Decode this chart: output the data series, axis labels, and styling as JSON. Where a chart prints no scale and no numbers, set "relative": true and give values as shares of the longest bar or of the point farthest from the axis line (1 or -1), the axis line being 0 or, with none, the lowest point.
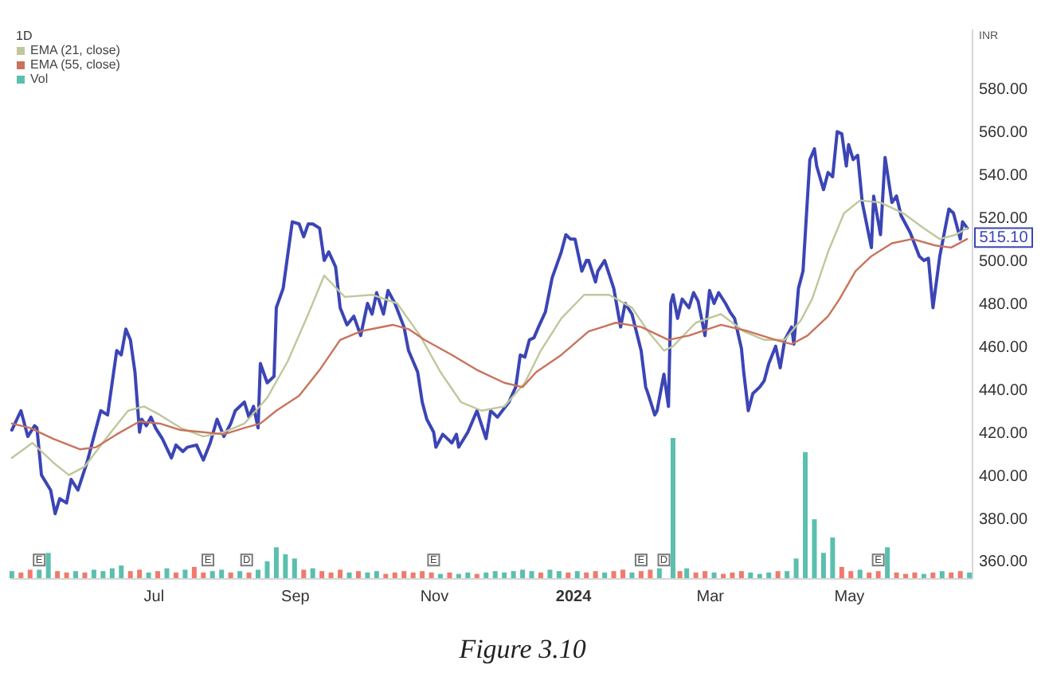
{
  "chart_data": [
    {
      "type": "line",
      "title": "1D",
      "ylabel": "INR",
      "legend": "top left",
      "xlim": [
        "2023-04-29",
        "2024-06-24"
      ],
      "xticks": [
        {
          "value": "2023-07-01",
          "label": "Jul"
        },
        {
          "value": "2023-09-01",
          "label": "Sep"
        },
        {
          "value": "2023-11-01",
          "label": "Nov"
        },
        {
          "value": "2024-01-01",
          "label": "2024"
        },
        {
          "value": "2024-03-01",
          "label": "Mar"
        },
        {
          "value": "2024-05-01",
          "label": "May"
        }
      ],
      "ylim": [
        352,
        608
      ],
      "yticks": [
        {
          "value": 360,
          "label": "360.00"
        },
        {
          "value": 380,
          "label": "380.00"
        },
        {
          "value": 400,
          "label": "400.00"
        },
        {
          "value": 420,
          "label": "420.00"
        },
        {
          "value": 440,
          "label": "440.00"
        },
        {
          "value": 460,
          "label": "460.00"
        },
        {
          "value": 480,
          "label": "480.00"
        },
        {
          "value": 500,
          "label": "500.00"
        },
        {
          "value": 520,
          "label": "520.00"
        },
        {
          "value": 540,
          "label": "540.00"
        },
        {
          "value": 560,
          "label": "560.00"
        },
        {
          "value": 580,
          "label": "580.00"
        }
      ],
      "series": [
        {
          "color": "#3b45b5",
          "x": [
            "2023-04-30",
            "2023-05-04",
            "2023-05-07",
            "2023-05-10",
            "2023-05-11",
            "2023-05-13",
            "2023-05-17",
            "2023-05-19",
            "2023-05-21",
            "2023-05-24",
            "2023-05-26",
            "2023-05-29",
            "2023-06-02",
            "2023-06-05",
            "2023-06-08",
            "2023-06-11",
            "2023-06-15",
            "2023-06-17",
            "2023-06-19",
            "2023-06-21",
            "2023-06-23",
            "2023-06-25",
            "2023-06-26",
            "2023-06-28",
            "2023-06-30",
            "2023-07-02",
            "2023-07-05",
            "2023-07-09",
            "2023-07-11",
            "2023-07-14",
            "2023-07-16",
            "2023-07-20",
            "2023-07-23",
            "2023-07-26",
            "2023-07-29",
            "2023-08-01",
            "2023-08-04",
            "2023-08-06",
            "2023-08-10",
            "2023-08-12",
            "2023-08-14",
            "2023-08-16",
            "2023-08-17",
            "2023-08-20",
            "2023-08-23",
            "2023-08-24",
            "2023-08-27",
            "2023-08-31",
            "2023-09-03",
            "2023-09-05",
            "2023-09-07",
            "2023-09-09",
            "2023-09-12",
            "2023-09-14",
            "2023-09-16",
            "2023-09-19",
            "2023-09-21",
            "2023-09-24",
            "2023-09-27",
            "2023-09-30",
            "2023-10-03",
            "2023-10-05",
            "2023-10-07",
            "2023-10-10",
            "2023-10-12",
            "2023-10-15",
            "2023-10-19",
            "2023-10-21",
            "2023-10-25",
            "2023-10-27",
            "2023-10-29",
            "2023-11-01",
            "2023-11-02",
            "2023-11-05",
            "2023-11-09",
            "2023-11-11",
            "2023-11-12",
            "2023-11-16",
            "2023-11-20",
            "2023-11-24",
            "2023-11-26",
            "2023-11-29",
            "2023-12-04",
            "2023-12-07",
            "2023-12-09",
            "2023-12-11",
            "2023-12-13",
            "2023-12-15",
            "2023-12-17",
            "2023-12-20",
            "2023-12-23",
            "2023-12-27",
            "2023-12-29",
            "2023-12-31",
            "2024-01-02",
            "2024-01-05",
            "2024-01-07",
            "2024-01-08",
            "2024-01-11",
            "2024-01-12",
            "2024-01-15",
            "2024-01-19",
            "2024-01-22",
            "2024-01-24",
            "2024-01-27",
            "2024-01-31",
            "2024-02-02",
            "2024-02-03",
            "2024-02-06",
            "2024-02-07",
            "2024-02-10",
            "2024-02-12",
            "2024-02-13",
            "2024-02-14",
            "2024-02-16",
            "2024-02-18",
            "2024-02-21",
            "2024-02-23",
            "2024-02-25",
            "2024-02-28",
            "2024-03-01",
            "2024-03-03",
            "2024-03-05",
            "2024-03-08",
            "2024-03-10",
            "2024-03-12",
            "2024-03-15",
            "2024-03-16",
            "2024-03-18",
            "2024-03-20",
            "2024-03-23",
            "2024-03-25",
            "2024-03-27",
            "2024-03-30",
            "2024-04-01",
            "2024-04-03",
            "2024-04-06",
            "2024-04-07",
            "2024-04-09",
            "2024-04-11",
            "2024-04-14",
            "2024-04-16",
            "2024-04-17",
            "2024-04-20",
            "2024-04-22",
            "2024-04-24",
            "2024-04-26",
            "2024-04-28",
            "2024-04-30",
            "2024-05-01",
            "2024-05-03",
            "2024-05-05",
            "2024-05-07",
            "2024-05-11",
            "2024-05-12",
            "2024-05-15",
            "2024-05-17",
            "2024-05-20",
            "2024-05-22",
            "2024-05-24",
            "2024-05-28",
            "2024-06-01",
            "2024-06-03",
            "2024-06-05",
            "2024-06-07",
            "2024-06-10",
            "2024-06-14",
            "2024-06-16",
            "2024-06-19",
            "2024-06-20",
            "2024-06-22"
          ],
          "values": [
            421,
            430,
            418,
            423,
            422,
            400,
            393,
            382,
            389,
            387,
            398,
            393,
            406,
            418,
            430,
            428,
            458,
            456,
            468,
            463,
            448,
            420,
            426,
            423,
            427,
            422,
            417,
            408,
            414,
            411,
            413,
            414,
            407,
            415,
            426,
            418,
            424,
            430,
            434,
            427,
            432,
            422,
            452,
            443,
            446,
            478,
            487,
            518,
            517,
            511,
            517,
            517,
            515,
            500,
            504,
            497,
            478,
            470,
            474,
            465,
            480,
            475,
            485,
            475,
            486,
            480,
            469,
            458,
            448,
            434,
            426,
            420,
            413,
            419,
            415,
            419,
            413,
            420,
            430,
            417,
            430,
            427,
            434,
            441,
            456,
            455,
            463,
            464,
            469,
            476,
            492,
            504,
            512,
            510,
            510,
            495,
            500,
            500,
            490,
            495,
            500,
            487,
            469,
            480,
            475,
            458,
            441,
            438,
            428,
            430,
            447,
            432,
            480,
            484,
            473,
            482,
            478,
            485,
            481,
            465,
            486,
            480,
            485,
            480,
            476,
            473,
            459,
            448,
            430,
            438,
            441,
            444,
            452,
            460,
            450,
            463,
            469,
            461,
            487,
            495,
            547,
            552,
            544,
            533,
            541,
            539,
            560,
            559,
            544,
            554,
            547,
            549,
            527,
            506,
            530,
            512,
            548,
            527,
            530,
            521,
            513,
            502,
            500,
            501,
            478,
            502,
            524,
            522,
            510,
            518,
            515.1
          ]
        },
        {
          "name": "EMA (21, close)",
          "color": "#bfc79c",
          "x": [
            "2023-04-30",
            "2023-05-09",
            "2023-05-18",
            "2023-05-25",
            "2023-06-01",
            "2023-06-11",
            "2023-06-20",
            "2023-06-27",
            "2023-07-04",
            "2023-07-13",
            "2023-07-23",
            "2023-08-01",
            "2023-08-10",
            "2023-08-20",
            "2023-08-29",
            "2023-09-07",
            "2023-09-14",
            "2023-09-23",
            "2023-10-05",
            "2023-10-16",
            "2023-10-26",
            "2023-11-04",
            "2023-11-13",
            "2023-11-22",
            "2023-12-02",
            "2023-12-11",
            "2023-12-18",
            "2023-12-27",
            "2024-01-06",
            "2024-01-17",
            "2024-01-27",
            "2024-02-03",
            "2024-02-10",
            "2024-02-14",
            "2024-02-24",
            "2024-03-06",
            "2024-03-16",
            "2024-03-25",
            "2024-04-03",
            "2024-04-10",
            "2024-04-15",
            "2024-04-22",
            "2024-04-29",
            "2024-05-06",
            "2024-05-15",
            "2024-05-25",
            "2024-06-03",
            "2024-06-10",
            "2024-06-17",
            "2024-06-22"
          ],
          "values": [
            408,
            415,
            406,
            400,
            404,
            418,
            430,
            432,
            428,
            422,
            418,
            420,
            424,
            436,
            453,
            475,
            493,
            483,
            484,
            480,
            465,
            448,
            434,
            430,
            432,
            443,
            458,
            473,
            484,
            484,
            478,
            467,
            458,
            460,
            471,
            475,
            467,
            463,
            463,
            472,
            482,
            504,
            522,
            528,
            527,
            522,
            515,
            510,
            512,
            515
          ]
        },
        {
          "name": "EMA (55, close)",
          "color": "#c9735c",
          "x": [
            "2023-04-30",
            "2023-05-08",
            "2023-05-18",
            "2023-05-30",
            "2023-06-06",
            "2023-06-15",
            "2023-06-25",
            "2023-07-04",
            "2023-07-13",
            "2023-07-23",
            "2023-08-01",
            "2023-08-10",
            "2023-08-17",
            "2023-08-24",
            "2023-09-03",
            "2023-09-12",
            "2023-09-21",
            "2023-09-30",
            "2023-10-14",
            "2023-10-21",
            "2023-10-28",
            "2023-11-09",
            "2023-11-20",
            "2023-12-02",
            "2023-12-10",
            "2023-12-16",
            "2023-12-27",
            "2024-01-08",
            "2024-01-20",
            "2024-01-31",
            "2024-02-12",
            "2024-02-21",
            "2024-03-06",
            "2024-03-18",
            "2024-03-30",
            "2024-04-06",
            "2024-04-13",
            "2024-04-22",
            "2024-04-27",
            "2024-05-04",
            "2024-05-11",
            "2024-05-20",
            "2024-05-29",
            "2024-06-08",
            "2024-06-15",
            "2024-06-22"
          ],
          "values": [
            424,
            422,
            417,
            412,
            413,
            419,
            425,
            424,
            421,
            420,
            419,
            422,
            424,
            430,
            437,
            449,
            463,
            467,
            470,
            468,
            463,
            456,
            449,
            443,
            441,
            448,
            456,
            467,
            471,
            469,
            463,
            465,
            470,
            467,
            463,
            461,
            465,
            474,
            482,
            495,
            502,
            508,
            510,
            507,
            506,
            510
          ]
        }
      ],
      "annotations": [
        {
          "text": "515.10",
          "x": "2024-06-22",
          "y": 515.1
        },
        "Figure 3.10"
      ]
    },
    {
      "type": "bar",
      "relative": true,
      "legend": "top left",
      "tick_labels": false,
      "xlim": [
        "2023-04-29",
        "2024-06-24"
      ],
      "series": [
        {
          "name": "Vol",
          "x": [
            "2023-04-30",
            "2023-05-04",
            "2023-05-08",
            "2023-05-12",
            "2023-05-16",
            "2023-05-20",
            "2023-05-24",
            "2023-05-28",
            "2023-06-01",
            "2023-06-05",
            "2023-06-09",
            "2023-06-13",
            "2023-06-17",
            "2023-06-21",
            "2023-06-25",
            "2023-06-29",
            "2023-07-03",
            "2023-07-07",
            "2023-07-11",
            "2023-07-15",
            "2023-07-19",
            "2023-07-23",
            "2023-07-27",
            "2023-07-31",
            "2023-08-04",
            "2023-08-08",
            "2023-08-12",
            "2023-08-16",
            "2023-08-20",
            "2023-08-24",
            "2023-08-28",
            "2023-09-01",
            "2023-09-05",
            "2023-09-09",
            "2023-09-13",
            "2023-09-17",
            "2023-09-21",
            "2023-09-25",
            "2023-09-29",
            "2023-10-03",
            "2023-10-07",
            "2023-10-11",
            "2023-10-15",
            "2023-10-19",
            "2023-10-23",
            "2023-10-27",
            "2023-10-31",
            "2023-11-04",
            "2023-11-08",
            "2023-11-12",
            "2023-11-16",
            "2023-11-20",
            "2023-11-24",
            "2023-11-28",
            "2023-12-02",
            "2023-12-06",
            "2023-12-10",
            "2023-12-14",
            "2023-12-18",
            "2023-12-22",
            "2023-12-26",
            "2023-12-30",
            "2024-01-03",
            "2024-01-07",
            "2024-01-11",
            "2024-01-15",
            "2024-01-19",
            "2024-01-23",
            "2024-01-27",
            "2024-01-31",
            "2024-02-04",
            "2024-02-08",
            "2024-02-14",
            "2024-02-17",
            "2024-02-20",
            "2024-02-24",
            "2024-02-28",
            "2024-03-03",
            "2024-03-07",
            "2024-03-11",
            "2024-03-15",
            "2024-03-19",
            "2024-03-23",
            "2024-03-27",
            "2024-03-31",
            "2024-04-04",
            "2024-04-08",
            "2024-04-12",
            "2024-04-16",
            "2024-04-20",
            "2024-04-24",
            "2024-04-28",
            "2024-05-02",
            "2024-05-06",
            "2024-05-10",
            "2024-05-14",
            "2024-05-18",
            "2024-05-22",
            "2024-05-26",
            "2024-05-30",
            "2024-06-03",
            "2024-06-07",
            "2024-06-11",
            "2024-06-15",
            "2024-06-19",
            "2024-06-23"
          ],
          "values": [
            0.05,
            0.04,
            0.06,
            0.06,
            0.18,
            0.05,
            0.04,
            0.05,
            0.04,
            0.06,
            0.05,
            0.07,
            0.09,
            0.05,
            0.06,
            0.04,
            0.05,
            0.07,
            0.04,
            0.06,
            0.08,
            0.04,
            0.05,
            0.06,
            0.04,
            0.05,
            0.04,
            0.06,
            0.12,
            0.22,
            0.17,
            0.14,
            0.06,
            0.07,
            0.05,
            0.04,
            0.06,
            0.04,
            0.05,
            0.04,
            0.05,
            0.03,
            0.04,
            0.05,
            0.04,
            0.05,
            0.04,
            0.03,
            0.04,
            0.03,
            0.04,
            0.03,
            0.04,
            0.05,
            0.04,
            0.05,
            0.06,
            0.05,
            0.04,
            0.06,
            0.05,
            0.04,
            0.05,
            0.04,
            0.05,
            0.04,
            0.05,
            0.06,
            0.04,
            0.05,
            0.06,
            0.07,
            1,
            0.05,
            0.07,
            0.04,
            0.05,
            0.04,
            0.03,
            0.04,
            0.05,
            0.04,
            0.03,
            0.04,
            0.05,
            0.05,
            0.14,
            0.9,
            0.42,
            0.18,
            0.29,
            0.08,
            0.05,
            0.06,
            0.04,
            0.05,
            0.22,
            0.04,
            0.03,
            0.04,
            0.03,
            0.04,
            0.05,
            0.04,
            0.05,
            0.04
          ],
          "colors": [
            "#5cbfae",
            "#ee7b6d",
            "#ee7b6d",
            "#5cbfae",
            "#5cbfae",
            "#ee7b6d",
            "#ee7b6d",
            "#5cbfae",
            "#ee7b6d",
            "#5cbfae",
            "#5cbfae",
            "#5cbfae",
            "#5cbfae",
            "#ee7b6d",
            "#ee7b6d",
            "#5cbfae",
            "#ee7b6d",
            "#5cbfae",
            "#ee7b6d",
            "#5cbfae",
            "#ee7b6d",
            "#ee7b6d",
            "#5cbfae",
            "#5cbfae",
            "#ee7b6d",
            "#5cbfae",
            "#ee7b6d",
            "#5cbfae",
            "#5cbfae",
            "#5cbfae",
            "#5cbfae",
            "#5cbfae",
            "#ee7b6d",
            "#5cbfae",
            "#ee7b6d",
            "#ee7b6d",
            "#ee7b6d",
            "#5cbfae",
            "#ee7b6d",
            "#5cbfae",
            "#5cbfae",
            "#ee7b6d",
            "#ee7b6d",
            "#ee7b6d",
            "#ee7b6d",
            "#ee7b6d",
            "#ee7b6d",
            "#5cbfae",
            "#ee7b6d",
            "#5cbfae",
            "#5cbfae",
            "#ee7b6d",
            "#5cbfae",
            "#5cbfae",
            "#5cbfae",
            "#5cbfae",
            "#5cbfae",
            "#5cbfae",
            "#ee7b6d",
            "#5cbfae",
            "#5cbfae",
            "#ee7b6d",
            "#5cbfae",
            "#ee7b6d",
            "#ee7b6d",
            "#5cbfae",
            "#ee7b6d",
            "#ee7b6d",
            "#5cbfae",
            "#ee7b6d",
            "#ee7b6d",
            "#5cbfae",
            "#5cbfae",
            "#ee7b6d",
            "#5cbfae",
            "#ee7b6d",
            "#ee7b6d",
            "#5cbfae",
            "#ee7b6d",
            "#ee7b6d",
            "#ee7b6d",
            "#5cbfae",
            "#5cbfae",
            "#5cbfae",
            "#ee7b6d",
            "#5cbfae",
            "#5cbfae",
            "#5cbfae",
            "#5cbfae",
            "#5cbfae",
            "#5cbfae",
            "#ee7b6d",
            "#ee7b6d",
            "#5cbfae",
            "#ee7b6d",
            "#ee7b6d",
            "#5cbfae",
            "#ee7b6d",
            "#ee7b6d",
            "#ee7b6d",
            "#5cbfae",
            "#ee7b6d",
            "#5cbfae",
            "#ee7b6d",
            "#ee7b6d",
            "#5cbfae"
          ]
        }
      ],
      "annotations": [
        {
          "text": "E",
          "x": "2023-05-12",
          "y": 0.13
        },
        {
          "text": "E",
          "x": "2023-07-25",
          "y": 0.13
        },
        {
          "text": "D",
          "x": "2023-08-11",
          "y": 0.13
        },
        {
          "text": "E",
          "x": "2023-11-01",
          "y": 0.13
        },
        {
          "text": "E",
          "x": "2024-01-31",
          "y": 0.13
        },
        {
          "text": "D",
          "x": "2024-02-10",
          "y": 0.13
        },
        {
          "text": "E",
          "x": "2024-05-14",
          "y": 0.13
        }
      ]
    }
  ]
}
